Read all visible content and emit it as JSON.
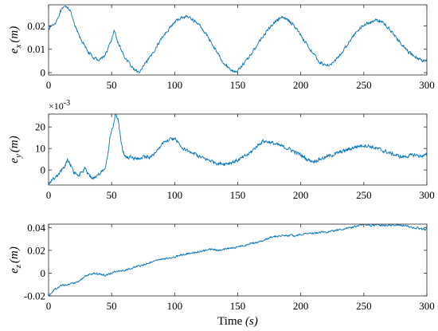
{
  "chart_data": [
    {
      "type": "line",
      "ylabel_base": "e",
      "ylabel_sub": "x",
      "ylabel_unit": "(m)",
      "xlim": [
        0,
        300
      ],
      "ylim": [
        -0.001,
        0.029
      ],
      "xticks": [
        0,
        50,
        100,
        150,
        200,
        250,
        300
      ],
      "yticks": [
        0,
        0.01,
        0.02
      ],
      "ytick_labels": [
        "0",
        "0.01",
        "0.02"
      ],
      "line_color": "#0072BD",
      "noise": 0.00055,
      "points": [
        [
          0,
          0.019
        ],
        [
          5,
          0.021
        ],
        [
          10,
          0.0265
        ],
        [
          14,
          0.0285
        ],
        [
          17,
          0.027
        ],
        [
          20,
          0.021
        ],
        [
          25,
          0.015
        ],
        [
          30,
          0.01
        ],
        [
          35,
          0.0065
        ],
        [
          40,
          0.0055
        ],
        [
          45,
          0.0075
        ],
        [
          50,
          0.014
        ],
        [
          52,
          0.0175
        ],
        [
          55,
          0.013
        ],
        [
          60,
          0.007
        ],
        [
          65,
          0.003
        ],
        [
          70,
          0.0005
        ],
        [
          72,
          0.0
        ],
        [
          75,
          0.0025
        ],
        [
          80,
          0.006
        ],
        [
          85,
          0.0105
        ],
        [
          90,
          0.015
        ],
        [
          95,
          0.0185
        ],
        [
          100,
          0.0215
        ],
        [
          105,
          0.0235
        ],
        [
          110,
          0.024
        ],
        [
          115,
          0.0225
        ],
        [
          120,
          0.02
        ],
        [
          125,
          0.0165
        ],
        [
          130,
          0.012
        ],
        [
          135,
          0.0075
        ],
        [
          140,
          0.0035
        ],
        [
          145,
          0.001
        ],
        [
          148,
          0.0005
        ],
        [
          150,
          0.001
        ],
        [
          155,
          0.004
        ],
        [
          160,
          0.0075
        ],
        [
          165,
          0.0115
        ],
        [
          170,
          0.0155
        ],
        [
          175,
          0.019
        ],
        [
          180,
          0.022
        ],
        [
          185,
          0.0235
        ],
        [
          190,
          0.0225
        ],
        [
          195,
          0.02
        ],
        [
          200,
          0.016
        ],
        [
          205,
          0.012
        ],
        [
          210,
          0.008
        ],
        [
          215,
          0.0045
        ],
        [
          220,
          0.003
        ],
        [
          225,
          0.004
        ],
        [
          230,
          0.0065
        ],
        [
          235,
          0.0105
        ],
        [
          240,
          0.0145
        ],
        [
          245,
          0.018
        ],
        [
          250,
          0.0205
        ],
        [
          255,
          0.0215
        ],
        [
          260,
          0.0225
        ],
        [
          265,
          0.0215
        ],
        [
          270,
          0.019
        ],
        [
          275,
          0.0155
        ],
        [
          280,
          0.012
        ],
        [
          285,
          0.009
        ],
        [
          290,
          0.007
        ],
        [
          295,
          0.0055
        ],
        [
          300,
          0.005
        ]
      ]
    },
    {
      "type": "line",
      "ylabel_base": "e",
      "ylabel_sub": "y",
      "ylabel_unit": "(m)",
      "scale_exponent_base": "×10",
      "scale_exponent_power": "-3",
      "xlim": [
        0,
        300
      ],
      "ylim": [
        -7,
        26
      ],
      "xticks": [
        0,
        50,
        100,
        150,
        200,
        250,
        300
      ],
      "yticks": [
        0,
        10,
        20
      ],
      "ytick_labels": [
        "0",
        "10",
        "20"
      ],
      "line_color": "#0072BD",
      "noise": 0.7,
      "points": [
        [
          0,
          -6
        ],
        [
          4,
          -4
        ],
        [
          8,
          -2
        ],
        [
          12,
          1
        ],
        [
          15,
          4.5
        ],
        [
          17,
          3
        ],
        [
          20,
          -1
        ],
        [
          23,
          -3
        ],
        [
          26,
          -1
        ],
        [
          29,
          0.5
        ],
        [
          32,
          -2.5
        ],
        [
          35,
          -4
        ],
        [
          38,
          -3
        ],
        [
          42,
          -1
        ],
        [
          45,
          0
        ],
        [
          47,
          8
        ],
        [
          49,
          16
        ],
        [
          51,
          20
        ],
        [
          53,
          26
        ],
        [
          55,
          24
        ],
        [
          57,
          15
        ],
        [
          59,
          8
        ],
        [
          62,
          6
        ],
        [
          66,
          6
        ],
        [
          70,
          5.5
        ],
        [
          75,
          6
        ],
        [
          80,
          6
        ],
        [
          85,
          8
        ],
        [
          90,
          12
        ],
        [
          95,
          14
        ],
        [
          100,
          14.5
        ],
        [
          103,
          13
        ],
        [
          106,
          10
        ],
        [
          110,
          9
        ],
        [
          115,
          8
        ],
        [
          120,
          6
        ],
        [
          125,
          5
        ],
        [
          130,
          4
        ],
        [
          135,
          3
        ],
        [
          140,
          3
        ],
        [
          145,
          3.5
        ],
        [
          150,
          4.5
        ],
        [
          155,
          6
        ],
        [
          160,
          8
        ],
        [
          165,
          11
        ],
        [
          170,
          13.5
        ],
        [
          175,
          13
        ],
        [
          180,
          12
        ],
        [
          185,
          11
        ],
        [
          190,
          10
        ],
        [
          195,
          8.5
        ],
        [
          200,
          7
        ],
        [
          205,
          5
        ],
        [
          210,
          4
        ],
        [
          215,
          5
        ],
        [
          220,
          6
        ],
        [
          225,
          7
        ],
        [
          230,
          8
        ],
        [
          235,
          9
        ],
        [
          240,
          10
        ],
        [
          245,
          11
        ],
        [
          250,
          11.5
        ],
        [
          255,
          11
        ],
        [
          260,
          10
        ],
        [
          265,
          9
        ],
        [
          270,
          8
        ],
        [
          275,
          7
        ],
        [
          280,
          6
        ],
        [
          285,
          6.5
        ],
        [
          290,
          7
        ],
        [
          295,
          6.5
        ],
        [
          300,
          7
        ]
      ]
    },
    {
      "type": "line",
      "ylabel_base": "e",
      "ylabel_sub": "z",
      "ylabel_unit": "(m)",
      "xlabel_prefix": "Time ",
      "xlabel_unit": "(s)",
      "xlim": [
        0,
        300
      ],
      "ylim": [
        -0.02,
        0.043
      ],
      "xticks": [
        0,
        50,
        100,
        150,
        200,
        250,
        300
      ],
      "xtick_labels": [
        "0",
        "50",
        "100",
        "150",
        "200",
        "250",
        "300"
      ],
      "yticks": [
        -0.02,
        0,
        0.02,
        0.04
      ],
      "ytick_labels": [
        "-0.02",
        "0",
        "0.02",
        "0.04"
      ],
      "line_color": "#0072BD",
      "noise": 0.0007,
      "points": [
        [
          0,
          -0.02
        ],
        [
          5,
          -0.014
        ],
        [
          10,
          -0.011
        ],
        [
          15,
          -0.01
        ],
        [
          20,
          -0.009
        ],
        [
          25,
          -0.007
        ],
        [
          30,
          -0.002
        ],
        [
          35,
          0.0
        ],
        [
          40,
          -0.001
        ],
        [
          45,
          -0.002
        ],
        [
          50,
          0.0
        ],
        [
          55,
          0.002
        ],
        [
          60,
          0.002
        ],
        [
          65,
          0.004
        ],
        [
          70,
          0.006
        ],
        [
          75,
          0.007
        ],
        [
          80,
          0.009
        ],
        [
          85,
          0.011
        ],
        [
          90,
          0.012
        ],
        [
          95,
          0.013
        ],
        [
          100,
          0.014
        ],
        [
          105,
          0.016
        ],
        [
          110,
          0.017
        ],
        [
          115,
          0.018
        ],
        [
          120,
          0.019
        ],
        [
          125,
          0.02
        ],
        [
          130,
          0.021
        ],
        [
          135,
          0.02
        ],
        [
          140,
          0.021
        ],
        [
          145,
          0.022
        ],
        [
          150,
          0.023
        ],
        [
          155,
          0.024
        ],
        [
          160,
          0.026
        ],
        [
          165,
          0.027
        ],
        [
          170,
          0.029
        ],
        [
          175,
          0.031
        ],
        [
          180,
          0.032
        ],
        [
          185,
          0.033
        ],
        [
          190,
          0.033
        ],
        [
          195,
          0.033
        ],
        [
          200,
          0.034
        ],
        [
          205,
          0.035
        ],
        [
          210,
          0.035
        ],
        [
          215,
          0.036
        ],
        [
          220,
          0.036
        ],
        [
          225,
          0.037
        ],
        [
          230,
          0.038
        ],
        [
          235,
          0.039
        ],
        [
          240,
          0.04
        ],
        [
          245,
          0.041
        ],
        [
          250,
          0.043
        ],
        [
          255,
          0.042
        ],
        [
          260,
          0.042
        ],
        [
          265,
          0.042
        ],
        [
          270,
          0.042
        ],
        [
          275,
          0.042
        ],
        [
          280,
          0.042
        ],
        [
          285,
          0.041
        ],
        [
          290,
          0.04
        ],
        [
          295,
          0.039
        ],
        [
          300,
          0.038
        ]
      ]
    }
  ]
}
